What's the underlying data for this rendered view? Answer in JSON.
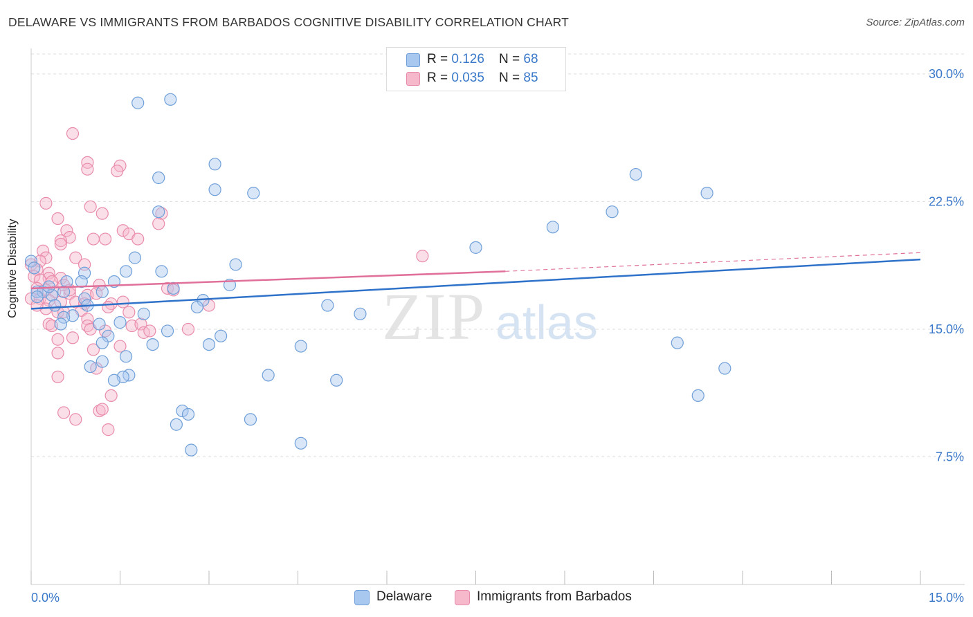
{
  "title": "DELAWARE VS IMMIGRANTS FROM BARBADOS COGNITIVE DISABILITY CORRELATION CHART",
  "source": "Source: ZipAtlas.com",
  "watermark": {
    "zip": "ZIP",
    "atlas": "atlas"
  },
  "colors": {
    "blue_fill": "#a9c8ef",
    "blue_stroke": "#6f9fd8",
    "blue_line": "#2f72c9",
    "pink_fill": "#f6b8cb",
    "pink_stroke": "#e98cab",
    "pink_line": "#e0709a",
    "axis_text": "#3a78c9",
    "grid": "#dddddd"
  },
  "legend": {
    "rows": [
      {
        "r_label": "R = ",
        "r_value": "0.126",
        "n_label": "N = ",
        "n_value": "68"
      },
      {
        "r_label": "R = ",
        "r_value": "0.035",
        "n_label": "N = ",
        "n_value": "85"
      }
    ]
  },
  "bottom_legend": [
    "Delaware",
    "Immigrants from Barbados"
  ],
  "chart_data": {
    "type": "scatter",
    "title": "DELAWARE VS IMMIGRANTS FROM BARBADOS COGNITIVE DISABILITY CORRELATION CHART",
    "xlabel": "",
    "ylabel": "Cognitive Disability",
    "xlim": [
      0,
      15
    ],
    "ylim": [
      0,
      31.5
    ],
    "x_tick_labels": [
      "0.0%",
      "15.0%"
    ],
    "y_ticks": [
      7.5,
      15.0,
      22.5,
      30.0
    ],
    "y_tick_labels": [
      "7.5%",
      "15.0%",
      "22.5%",
      "30.0%"
    ],
    "grid": true,
    "legend_position": "top-center",
    "series": [
      {
        "name": "Delaware",
        "r": 0.126,
        "n": 68,
        "trend": {
          "x": [
            0.0,
            15.0
          ],
          "y": [
            16.2,
            19.1
          ]
        },
        "points": [
          [
            1.8,
            28.3
          ],
          [
            2.35,
            28.5
          ],
          [
            3.1,
            24.7
          ],
          [
            2.15,
            23.9
          ],
          [
            3.1,
            23.2
          ],
          [
            3.75,
            23.0
          ],
          [
            10.2,
            24.1
          ],
          [
            11.4,
            23.0
          ],
          [
            2.15,
            21.9
          ],
          [
            9.8,
            21.9
          ],
          [
            8.8,
            21.0
          ],
          [
            7.5,
            19.8
          ],
          [
            0.0,
            19.0
          ],
          [
            1.75,
            19.2
          ],
          [
            3.45,
            18.8
          ],
          [
            0.05,
            18.6
          ],
          [
            1.6,
            18.4
          ],
          [
            2.2,
            18.4
          ],
          [
            0.9,
            18.3
          ],
          [
            0.6,
            17.8
          ],
          [
            0.85,
            17.8
          ],
          [
            1.4,
            17.8
          ],
          [
            3.35,
            17.6
          ],
          [
            2.4,
            17.4
          ],
          [
            0.1,
            17.2
          ],
          [
            0.2,
            17.2
          ],
          [
            0.55,
            17.2
          ],
          [
            1.2,
            17.2
          ],
          [
            0.35,
            17.0
          ],
          [
            0.9,
            16.8
          ],
          [
            2.9,
            16.7
          ],
          [
            0.4,
            16.4
          ],
          [
            0.95,
            16.4
          ],
          [
            2.8,
            16.3
          ],
          [
            5.0,
            16.4
          ],
          [
            1.9,
            15.9
          ],
          [
            0.7,
            15.8
          ],
          [
            0.55,
            15.7
          ],
          [
            5.55,
            15.9
          ],
          [
            1.15,
            15.3
          ],
          [
            0.5,
            15.3
          ],
          [
            1.5,
            15.4
          ],
          [
            2.3,
            14.9
          ],
          [
            1.3,
            14.6
          ],
          [
            3.2,
            14.6
          ],
          [
            1.2,
            14.2
          ],
          [
            2.05,
            14.1
          ],
          [
            3.0,
            14.1
          ],
          [
            4.55,
            14.0
          ],
          [
            10.9,
            14.2
          ],
          [
            1.6,
            13.4
          ],
          [
            1.0,
            12.8
          ],
          [
            11.7,
            12.7
          ],
          [
            1.65,
            12.3
          ],
          [
            1.55,
            12.2
          ],
          [
            4.0,
            12.3
          ],
          [
            1.4,
            12.0
          ],
          [
            5.15,
            12.0
          ],
          [
            11.25,
            11.1
          ],
          [
            2.55,
            10.2
          ],
          [
            2.65,
            10.0
          ],
          [
            3.7,
            9.7
          ],
          [
            2.45,
            9.4
          ],
          [
            4.55,
            8.3
          ],
          [
            2.7,
            7.9
          ],
          [
            1.2,
            13.1
          ],
          [
            0.3,
            17.5
          ],
          [
            0.1,
            16.9
          ]
        ]
      },
      {
        "name": "Immigrants from Barbados",
        "r": 0.035,
        "n": 85,
        "trend": {
          "x": [
            0.0,
            8.0
          ],
          "y": [
            17.4,
            18.4
          ]
        },
        "trend_dashed": {
          "x": [
            8.0,
            15.0
          ],
          "y": [
            18.4,
            19.5
          ]
        },
        "points": [
          [
            0.7,
            26.5
          ],
          [
            0.95,
            24.8
          ],
          [
            0.95,
            24.4
          ],
          [
            1.5,
            24.6
          ],
          [
            1.45,
            24.3
          ],
          [
            0.25,
            22.4
          ],
          [
            1.0,
            22.2
          ],
          [
            1.2,
            21.8
          ],
          [
            2.2,
            21.8
          ],
          [
            0.45,
            21.5
          ],
          [
            2.15,
            21.2
          ],
          [
            0.6,
            20.8
          ],
          [
            1.55,
            20.8
          ],
          [
            1.65,
            20.6
          ],
          [
            0.65,
            20.4
          ],
          [
            1.05,
            20.3
          ],
          [
            1.25,
            20.3
          ],
          [
            1.8,
            20.3
          ],
          [
            0.5,
            20.2
          ],
          [
            0.5,
            20.0
          ],
          [
            0.2,
            19.6
          ],
          [
            6.6,
            19.3
          ],
          [
            0.25,
            19.2
          ],
          [
            0.15,
            19.0
          ],
          [
            0.75,
            19.2
          ],
          [
            0.9,
            18.8
          ],
          [
            0.0,
            18.8
          ],
          [
            0.1,
            18.5
          ],
          [
            0.3,
            18.3
          ],
          [
            0.05,
            18.1
          ],
          [
            0.3,
            18.0
          ],
          [
            0.5,
            18.0
          ],
          [
            0.15,
            17.9
          ],
          [
            0.35,
            17.8
          ],
          [
            0.55,
            17.6
          ],
          [
            1.15,
            17.6
          ],
          [
            2.3,
            17.4
          ],
          [
            0.1,
            17.4
          ],
          [
            0.25,
            17.3
          ],
          [
            0.4,
            17.2
          ],
          [
            0.65,
            17.1
          ],
          [
            0.95,
            17.0
          ],
          [
            1.1,
            17.1
          ],
          [
            0.0,
            16.8
          ],
          [
            0.15,
            16.8
          ],
          [
            0.3,
            16.7
          ],
          [
            0.5,
            16.6
          ],
          [
            0.75,
            16.6
          ],
          [
            0.9,
            16.5
          ],
          [
            1.35,
            16.5
          ],
          [
            3.0,
            16.4
          ],
          [
            0.25,
            16.2
          ],
          [
            0.45,
            16.0
          ],
          [
            0.55,
            16.0
          ],
          [
            0.85,
            16.1
          ],
          [
            1.65,
            16.0
          ],
          [
            0.95,
            15.6
          ],
          [
            0.3,
            15.3
          ],
          [
            0.35,
            15.2
          ],
          [
            0.95,
            15.2
          ],
          [
            1.7,
            15.2
          ],
          [
            1.85,
            15.3
          ],
          [
            1.0,
            15.0
          ],
          [
            2.65,
            15.0
          ],
          [
            1.25,
            14.9
          ],
          [
            1.9,
            14.8
          ],
          [
            0.45,
            14.4
          ],
          [
            0.7,
            14.5
          ],
          [
            1.5,
            14.0
          ],
          [
            0.45,
            13.6
          ],
          [
            1.05,
            13.8
          ],
          [
            1.1,
            12.7
          ],
          [
            0.45,
            12.2
          ],
          [
            1.35,
            11.1
          ],
          [
            0.55,
            10.1
          ],
          [
            1.15,
            10.2
          ],
          [
            1.2,
            10.3
          ],
          [
            0.75,
            9.7
          ],
          [
            1.3,
            9.1
          ],
          [
            2.0,
            14.9
          ],
          [
            1.3,
            16.3
          ],
          [
            0.65,
            17.3
          ],
          [
            0.1,
            16.4
          ],
          [
            1.55,
            16.6
          ],
          [
            2.4,
            17.3
          ]
        ]
      }
    ]
  }
}
